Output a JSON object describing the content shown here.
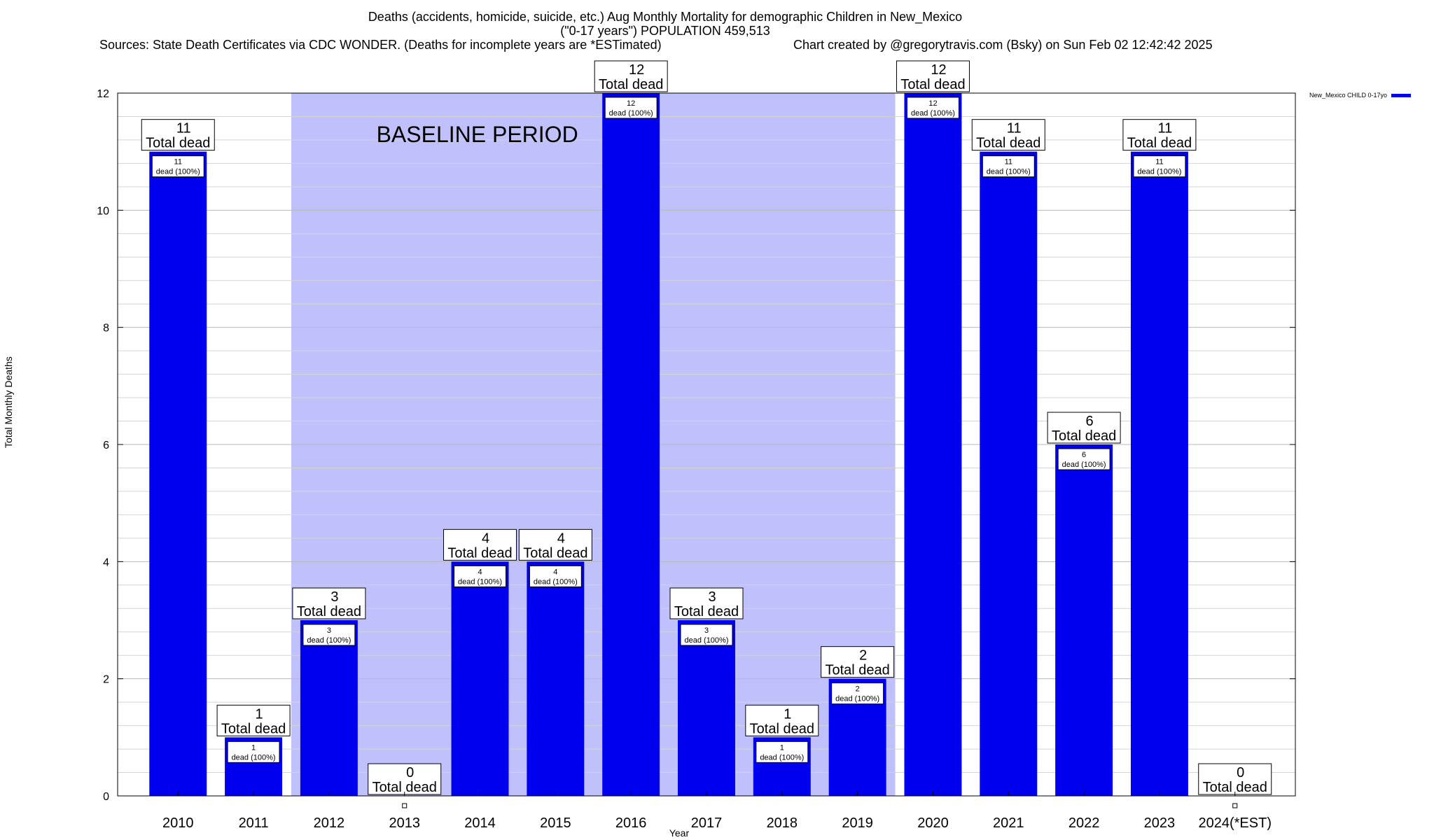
{
  "header": {
    "title_line1": "Deaths (accidents, homicide, suicide, etc.) Aug Monthly Mortality for demographic Children in New_Mexico",
    "title_line2": "(\"0-17 years\") POPULATION 459,513",
    "sources": "Sources: State Death Certificates via CDC WONDER. (Deaths for incomplete years are *ESTimated)",
    "credit": "Chart created by @gregorytravis.com (Bsky) on Sun Feb 02 12:42:42 2025"
  },
  "chart_data": {
    "type": "bar",
    "ylabel": "Total Monthly Deaths",
    "xlabel": "Year",
    "ylim": [
      0,
      12
    ],
    "yticks": [
      0,
      2,
      4,
      6,
      8,
      10,
      12
    ],
    "grid": true,
    "legend_position": "top-right",
    "categories": [
      "2010",
      "2011",
      "2012",
      "2013",
      "2014",
      "2015",
      "2016",
      "2017",
      "2018",
      "2019",
      "2020",
      "2021",
      "2022",
      "2023",
      "2024(*EST)"
    ],
    "series": [
      {
        "name": "New_Mexico CHILD 0-17yo",
        "color": "#0000ee",
        "values": [
          11,
          1,
          3,
          0,
          4,
          4,
          12,
          3,
          1,
          2,
          12,
          11,
          6,
          11,
          0
        ]
      }
    ],
    "total_label_suffix": "Total dead",
    "inner_labels": [
      "11\ndead (100%)",
      "1\ndead (100%)",
      "3\ndead (100%)",
      "",
      "4\ndead (100%)",
      "4\ndead (100%)",
      "12\ndead (100%)",
      "3\ndead (100%)",
      "1\ndead (100%)",
      "2\ndead (100%)",
      "12\ndead (100%)",
      "11\ndead (100%)",
      "6\ndead (100%)",
      "11\ndead (100%)",
      ""
    ],
    "baseline_period": {
      "label": "BASELINE PERIOD",
      "from": "2012",
      "to": "2019",
      "color": "#c0c0fc"
    }
  }
}
